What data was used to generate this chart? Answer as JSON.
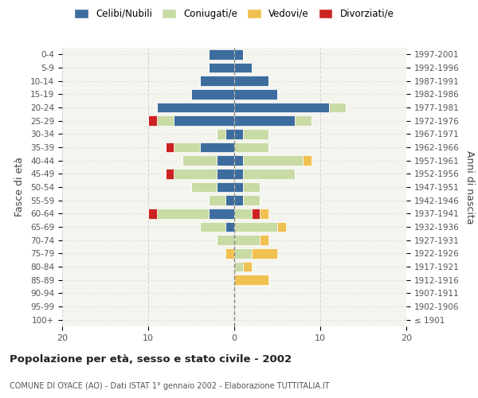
{
  "age_groups": [
    "100+",
    "95-99",
    "90-94",
    "85-89",
    "80-84",
    "75-79",
    "70-74",
    "65-69",
    "60-64",
    "55-59",
    "50-54",
    "45-49",
    "40-44",
    "35-39",
    "30-34",
    "25-29",
    "20-24",
    "15-19",
    "10-14",
    "5-9",
    "0-4"
  ],
  "birth_years": [
    "≤ 1901",
    "1902-1906",
    "1907-1911",
    "1912-1916",
    "1917-1921",
    "1922-1926",
    "1927-1931",
    "1932-1936",
    "1937-1941",
    "1942-1946",
    "1947-1951",
    "1952-1956",
    "1957-1961",
    "1962-1966",
    "1967-1971",
    "1972-1976",
    "1977-1981",
    "1982-1986",
    "1987-1991",
    "1992-1996",
    "1997-2001"
  ],
  "male_celibi": [
    0,
    0,
    0,
    0,
    0,
    0,
    0,
    1,
    3,
    1,
    2,
    2,
    2,
    4,
    1,
    7,
    9,
    5,
    4,
    3,
    3
  ],
  "male_coniugati": [
    0,
    0,
    0,
    0,
    0,
    0,
    2,
    3,
    6,
    2,
    3,
    5,
    4,
    3,
    1,
    2,
    0,
    0,
    0,
    0,
    0
  ],
  "male_vedovi": [
    0,
    0,
    0,
    0,
    0,
    1,
    0,
    0,
    0,
    0,
    0,
    0,
    0,
    0,
    0,
    0,
    0,
    0,
    0,
    0,
    0
  ],
  "male_divorziati": [
    0,
    0,
    0,
    0,
    0,
    0,
    0,
    0,
    1,
    0,
    0,
    1,
    0,
    1,
    0,
    1,
    0,
    0,
    0,
    0,
    0
  ],
  "female_celibi": [
    0,
    0,
    0,
    0,
    0,
    0,
    0,
    0,
    0,
    1,
    1,
    1,
    1,
    0,
    1,
    7,
    11,
    5,
    4,
    2,
    1
  ],
  "female_coniugati": [
    0,
    0,
    0,
    0,
    1,
    2,
    3,
    5,
    2,
    2,
    2,
    6,
    7,
    4,
    3,
    2,
    2,
    0,
    0,
    0,
    0
  ],
  "female_vedovi": [
    0,
    0,
    0,
    4,
    1,
    3,
    1,
    1,
    1,
    0,
    0,
    0,
    1,
    0,
    0,
    0,
    0,
    0,
    0,
    0,
    0
  ],
  "female_divorziati": [
    0,
    0,
    0,
    0,
    0,
    0,
    0,
    0,
    1,
    0,
    0,
    0,
    0,
    0,
    0,
    0,
    0,
    0,
    0,
    0,
    0
  ],
  "color_celibi": "#3d6d9e",
  "color_coniugati": "#c9dba5",
  "color_vedovi": "#f0c050",
  "color_divorziati": "#cc2222",
  "title": "Popolazione per età, sesso e stato civile - 2002",
  "subtitle": "COMUNE DI OYACE (AO) - Dati ISTAT 1° gennaio 2002 - Elaborazione TUTTITALIA.IT",
  "ylabel_left": "Fasce di età",
  "ylabel_right": "Anni di nascita",
  "xlim": 20,
  "bg_color": "#f5f5f0",
  "grid_color": "#cccccc"
}
